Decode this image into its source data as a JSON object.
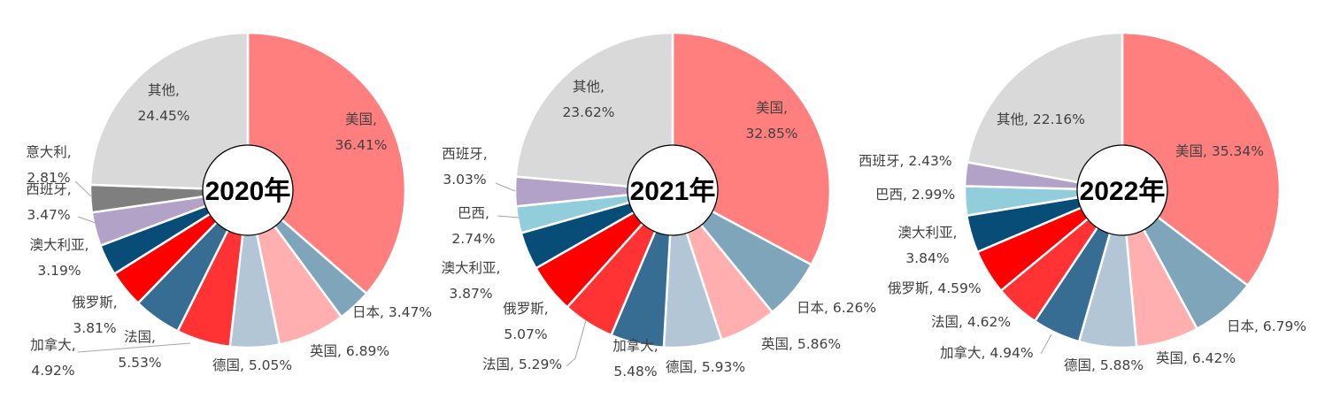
{
  "colors": {
    "美国": "#FF7F7F",
    "日本": "#7FA5BA",
    "英国": "#FFAFAF",
    "德国": "#B3C6D5",
    "法国": "#FF3333",
    "加拿大": "#376C93",
    "俄罗斯": "#FF0000",
    "澳大利亚": "#084D78",
    "西班牙": "#B3A2C7",
    "意大利": "#7F7F7F",
    "巴西": "#92CDDC",
    "其他": "#D9D9D9"
  },
  "chart_data": [
    {
      "type": "pie",
      "title": "2020年",
      "slices": [
        {
          "name": "美国",
          "value": 36.41,
          "label": "36.41%"
        },
        {
          "name": "日本",
          "value": 3.47,
          "label": "3.47%"
        },
        {
          "name": "英国",
          "value": 6.89,
          "label": "6.89%"
        },
        {
          "name": "德国",
          "value": 5.05,
          "label": "5.05%"
        },
        {
          "name": "法国",
          "value": 5.53,
          "label": "5.53%"
        },
        {
          "name": "加拿大",
          "value": 4.92,
          "label": "4.92%"
        },
        {
          "name": "俄罗斯",
          "value": 3.81,
          "label": "3.81%"
        },
        {
          "name": "澳大利亚",
          "value": 3.19,
          "label": "3.19%"
        },
        {
          "name": "西班牙",
          "value": 3.47,
          "label": "3.47%"
        },
        {
          "name": "意大利",
          "value": 2.81,
          "label": "2.81%"
        },
        {
          "name": "其他",
          "value": 24.45,
          "label": "24.45%"
        }
      ]
    },
    {
      "type": "pie",
      "title": "2021年",
      "slices": [
        {
          "name": "美国",
          "value": 32.85,
          "label": "32.85%"
        },
        {
          "name": "日本",
          "value": 6.26,
          "label": "6.26%"
        },
        {
          "name": "英国",
          "value": 5.86,
          "label": "5.86%"
        },
        {
          "name": "德国",
          "value": 5.93,
          "label": "5.93%"
        },
        {
          "name": "加拿大",
          "value": 5.48,
          "label": "5.48%"
        },
        {
          "name": "法国",
          "value": 5.29,
          "label": "5.29%"
        },
        {
          "name": "俄罗斯",
          "value": 5.07,
          "label": "5.07%"
        },
        {
          "name": "澳大利亚",
          "value": 3.87,
          "label": "3.87%"
        },
        {
          "name": "巴西",
          "value": 2.74,
          "label": "2.74%"
        },
        {
          "name": "西班牙",
          "value": 3.03,
          "label": "3.03%"
        },
        {
          "name": "其他",
          "value": 23.62,
          "label": "23.62%"
        }
      ]
    },
    {
      "type": "pie",
      "title": "2022年",
      "slices": [
        {
          "name": "美国",
          "value": 35.34,
          "label": "35.34%"
        },
        {
          "name": "日本",
          "value": 6.79,
          "label": "6.79%"
        },
        {
          "name": "英国",
          "value": 6.42,
          "label": "6.42%"
        },
        {
          "name": "德国",
          "value": 5.88,
          "label": "5.88%"
        },
        {
          "name": "加拿大",
          "value": 4.94,
          "label": "4.94%"
        },
        {
          "name": "法国",
          "value": 4.62,
          "label": "4.62%"
        },
        {
          "name": "俄罗斯",
          "value": 4.59,
          "label": "4.59%"
        },
        {
          "name": "澳大利亚",
          "value": 3.84,
          "label": "3.84%"
        },
        {
          "name": "巴西",
          "value": 2.99,
          "label": "2.99%"
        },
        {
          "name": "西班牙",
          "value": 2.43,
          "label": "2.43%"
        },
        {
          "name": "其他",
          "value": 22.16,
          "label": "22.16%"
        }
      ]
    }
  ]
}
